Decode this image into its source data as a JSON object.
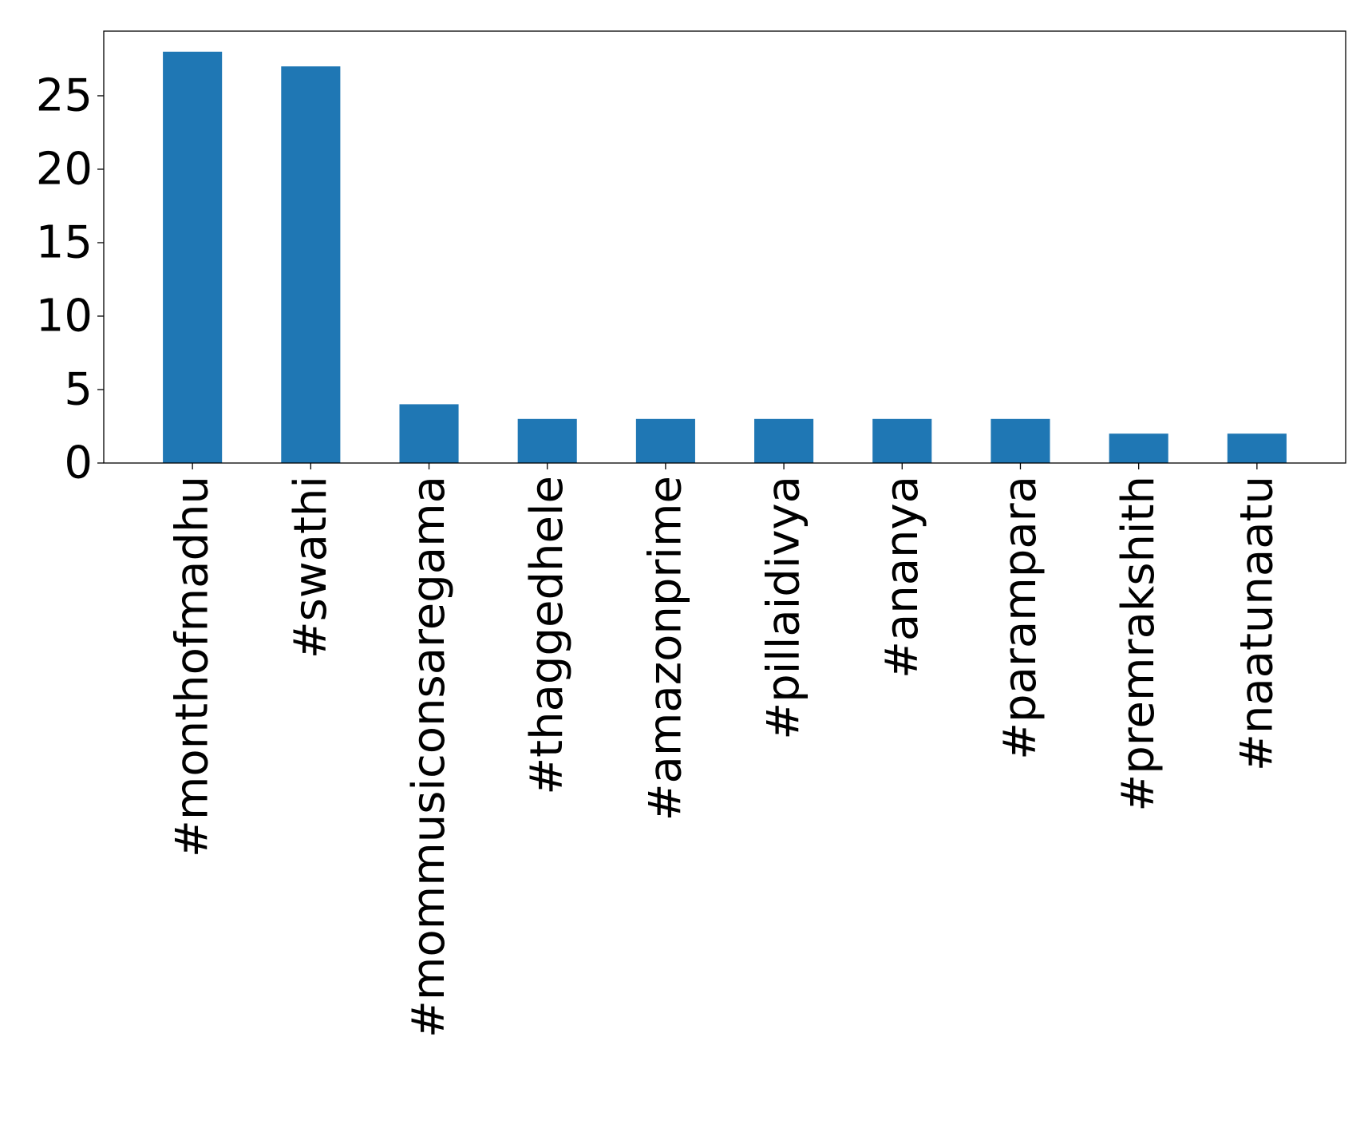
{
  "chart_data": {
    "type": "bar",
    "title": "",
    "xlabel": "",
    "ylabel": "",
    "categories": [
      "#monthofmadhu",
      "#swathi",
      "#mommusiconsaregama",
      "#thaggedhele",
      "#amazonprime",
      "#pillaidivya",
      "#ananya",
      "#parampara",
      "#premrakshith",
      "#naatunaatu"
    ],
    "values": [
      28,
      27,
      4,
      3,
      3,
      3,
      3,
      3,
      2,
      2
    ],
    "yticks": [
      0,
      5,
      10,
      15,
      20,
      25
    ],
    "ylim": [
      0,
      29.4
    ],
    "bar_color": "#1f77b4",
    "grid": false,
    "legend": "none"
  }
}
